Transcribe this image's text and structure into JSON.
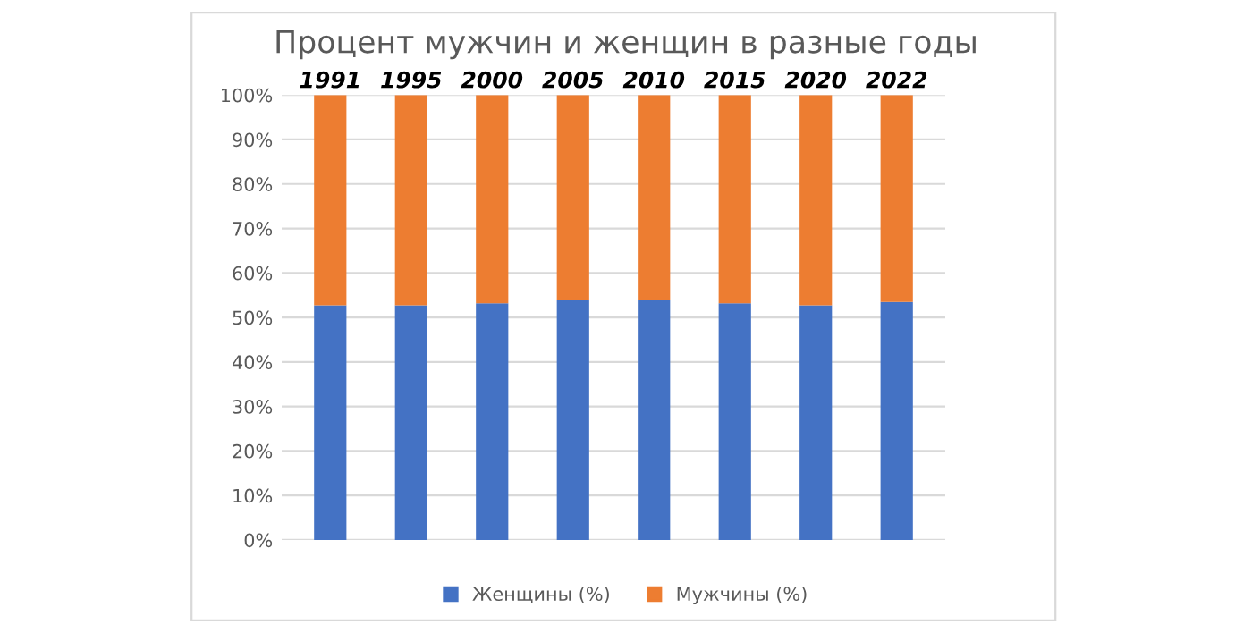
{
  "chart_data": {
    "type": "bar",
    "title": "Процент мужчин и женщин в разные годы",
    "stacked": true,
    "categories": [
      "1991",
      "1995",
      "2000",
      "2005",
      "2010",
      "2015",
      "2020",
      "2022"
    ],
    "series": [
      {
        "name": "Женщины (%)",
        "color": "#4472c4",
        "values": [
          52.7,
          52.7,
          53.2,
          53.9,
          53.9,
          53.2,
          52.7,
          53.5
        ]
      },
      {
        "name": "Мужчины (%)",
        "color": "#ed7d31",
        "values": [
          47.3,
          47.3,
          46.8,
          46.1,
          46.1,
          46.8,
          47.3,
          46.5
        ]
      }
    ],
    "ylim": [
      0,
      100
    ],
    "yticks": [
      {
        "value": 0,
        "label": "0%"
      },
      {
        "value": 10,
        "label": "10%"
      },
      {
        "value": 20,
        "label": "20%"
      },
      {
        "value": 30,
        "label": "30%"
      },
      {
        "value": 40,
        "label": "40%"
      },
      {
        "value": 50,
        "label": "50%"
      },
      {
        "value": 60,
        "label": "60%"
      },
      {
        "value": 70,
        "label": "70%"
      },
      {
        "value": 80,
        "label": "80%"
      },
      {
        "value": 90,
        "label": "90%"
      },
      {
        "value": 100,
        "label": "100%"
      }
    ],
    "grid": "y",
    "legend": "bottom"
  }
}
